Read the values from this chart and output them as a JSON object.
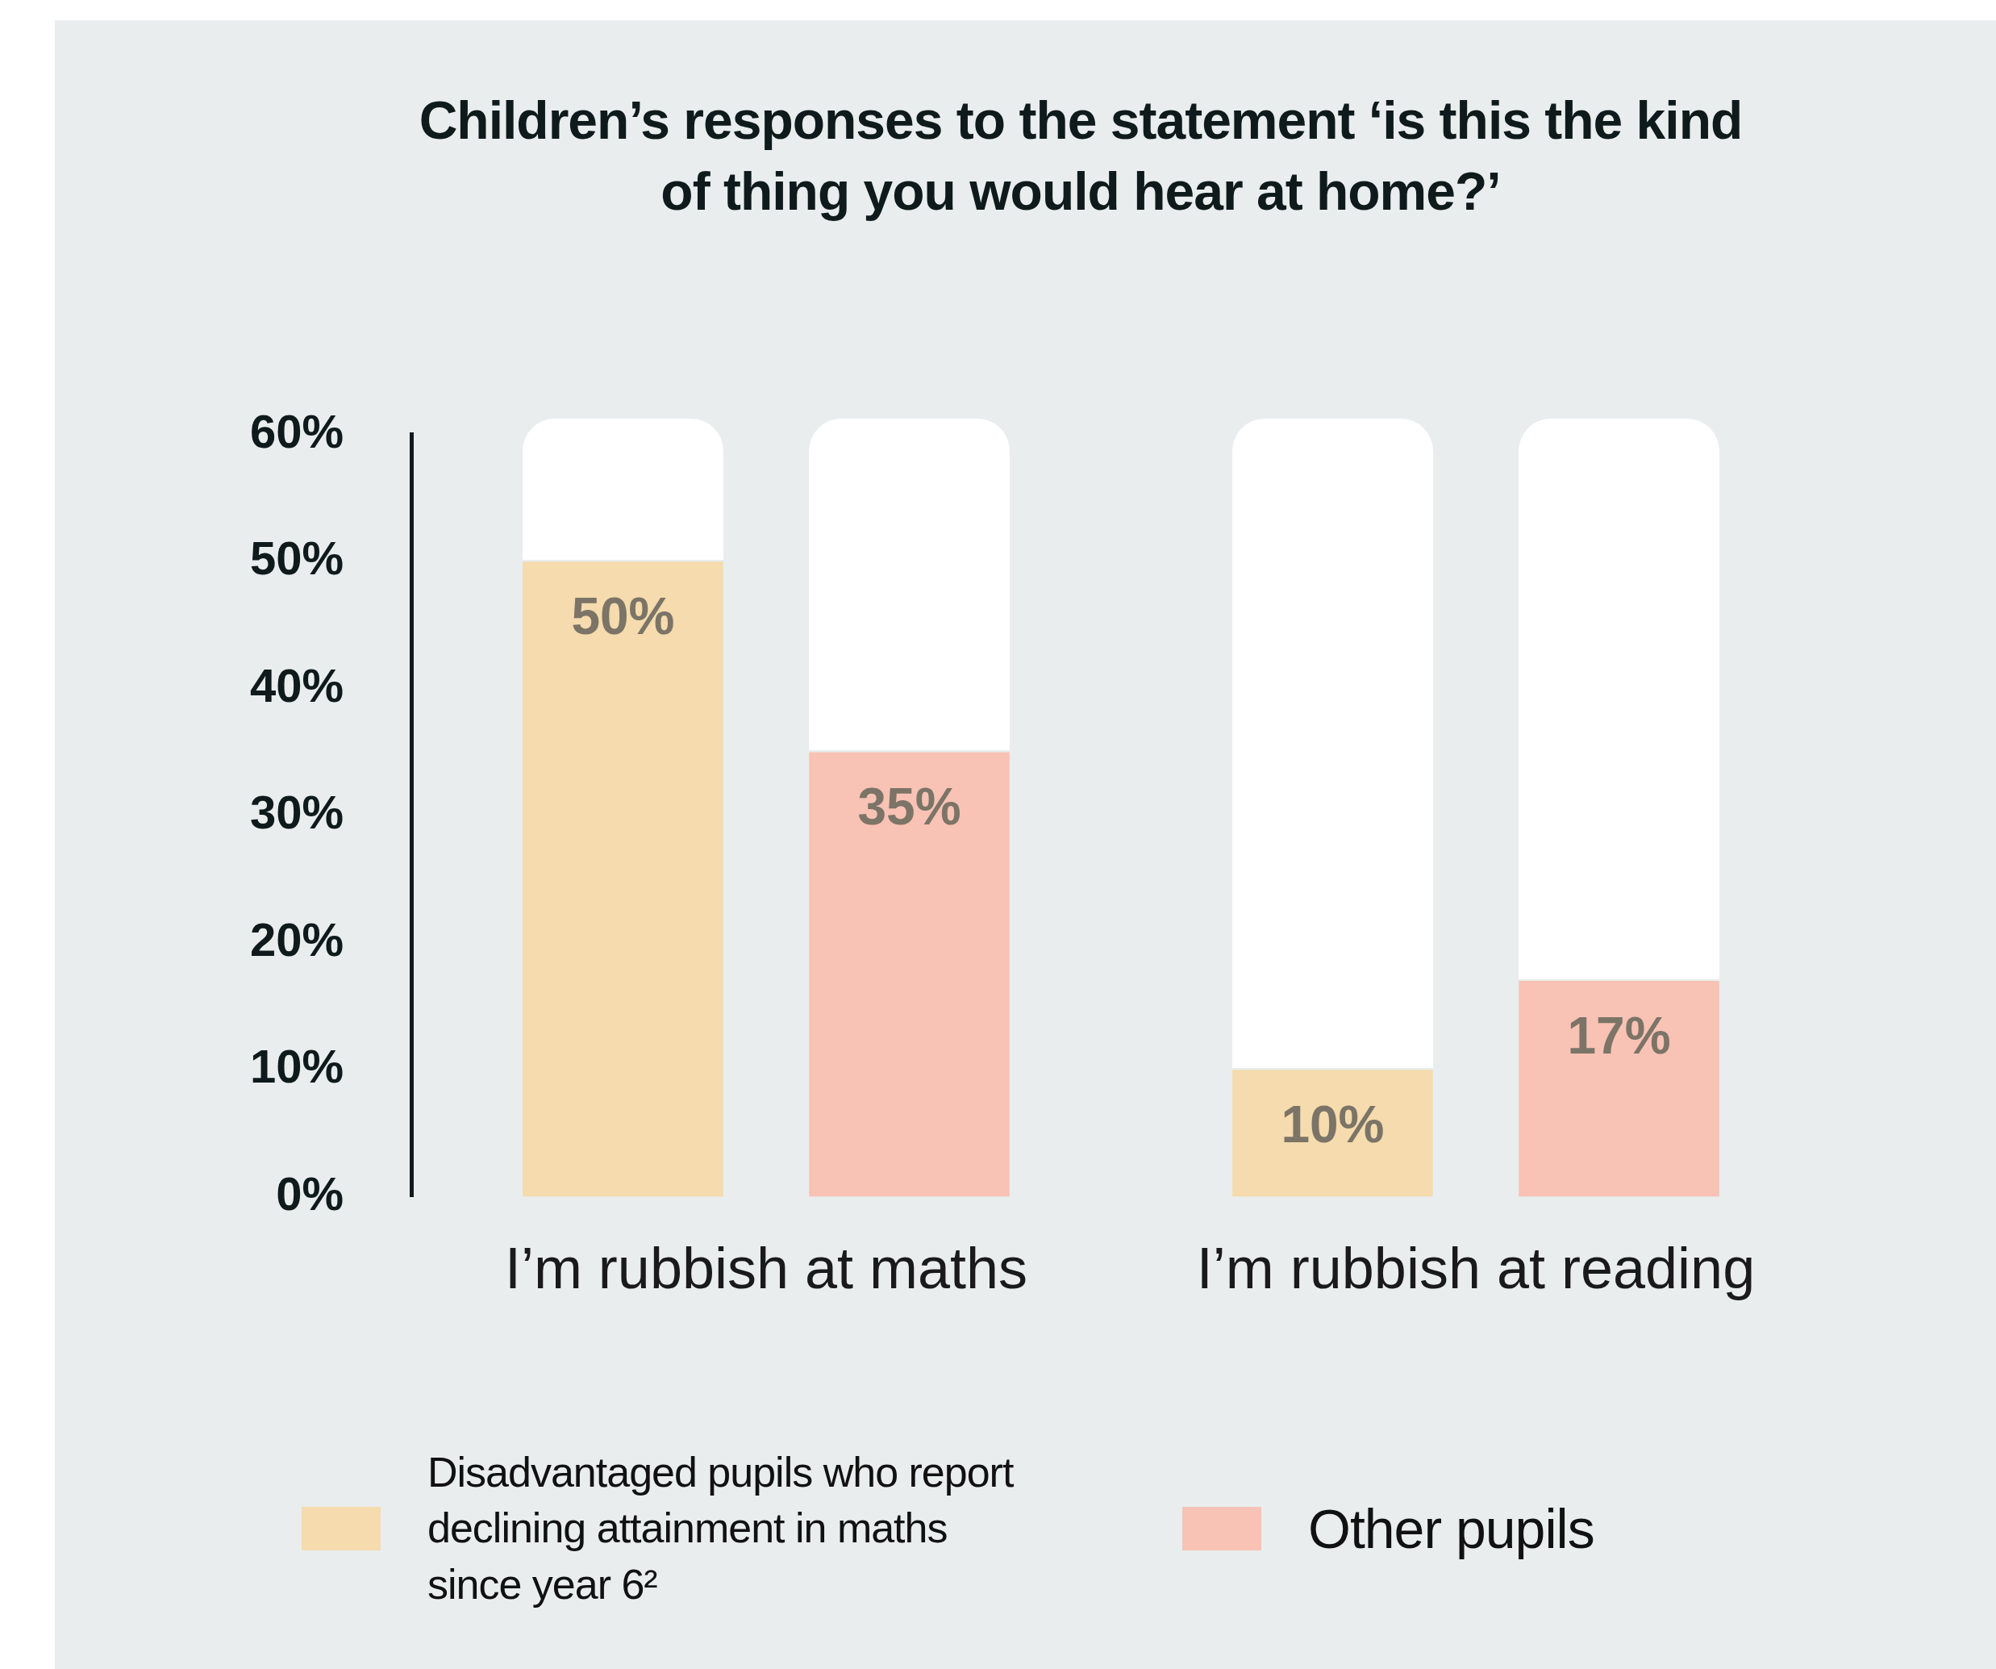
{
  "chart_data": {
    "type": "bar",
    "title": "Children’s responses to the statement ‘is this the kind of thing you would hear at home?’",
    "categories": [
      "I’m rubbish at maths",
      "I’m rubbish at reading"
    ],
    "series": [
      {
        "name": "Disadvantaged pupils who report declining attainment in maths since year 6²",
        "color": "#f5dbad",
        "values": [
          50,
          10
        ],
        "value_labels": [
          "50%",
          "10%"
        ]
      },
      {
        "name": "Other pupils",
        "color": "#f8c2b4",
        "values": [
          35,
          17
        ],
        "value_labels": [
          "35%",
          "17%"
        ]
      }
    ],
    "ylim": [
      0,
      60
    ],
    "yticks": [
      {
        "value": 0,
        "label": "0%"
      },
      {
        "value": 10,
        "label": "10%"
      },
      {
        "value": 20,
        "label": "20%"
      },
      {
        "value": 30,
        "label": "30%"
      },
      {
        "value": 40,
        "label": "40%"
      },
      {
        "value": 50,
        "label": "50%"
      },
      {
        "value": 60,
        "label": "60%"
      }
    ],
    "grid": false,
    "legend": "bottom"
  }
}
